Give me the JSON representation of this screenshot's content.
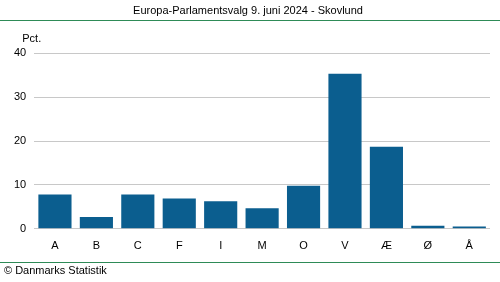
{
  "chart_data": {
    "type": "bar",
    "title": "Europa-Parlamentsvalg 9. juni 2024 - Skovlund",
    "ylabel": "Pct.",
    "source": "© Danmarks Statistik",
    "categories": [
      "A",
      "B",
      "C",
      "F",
      "I",
      "M",
      "O",
      "V",
      "Æ",
      "Ø",
      "Å"
    ],
    "values": [
      7.8,
      2.7,
      7.8,
      6.9,
      6.3,
      4.7,
      9.8,
      35.3,
      18.7,
      0.7,
      0.5
    ],
    "color": "#0b5e8f",
    "ylim": [
      0,
      40
    ],
    "yticks": [
      0,
      10,
      20,
      30,
      40
    ],
    "grid": true
  }
}
